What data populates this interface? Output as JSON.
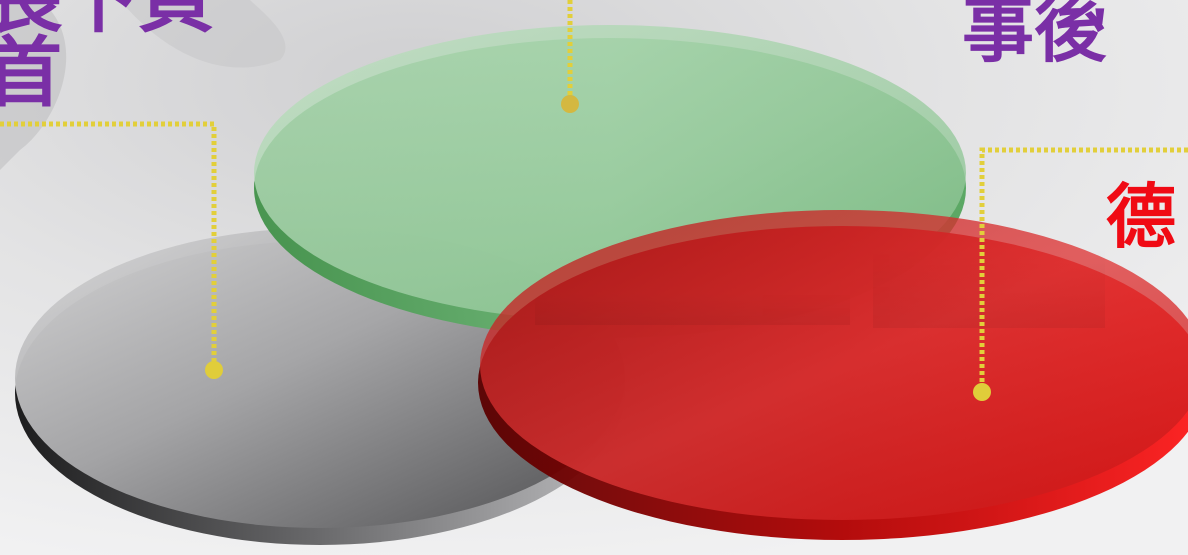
{
  "labels": {
    "left_line1": "長下頁",
    "left_line2": "首",
    "top_right": "事後ᡃ",
    "right": "德"
  },
  "colors": {
    "left_label": "#7a2fa6",
    "top_right_label": "#7a2fa6",
    "right_label": "#f00a14",
    "connector": "#e2cf3a",
    "disc_gray": "#8a8a8c",
    "disc_green": "#7fc08a",
    "disc_red": "#d02020"
  },
  "discs": [
    {
      "name": "gray-disc",
      "color": "gray"
    },
    {
      "name": "green-disc",
      "color": "green"
    },
    {
      "name": "red-disc",
      "color": "red"
    }
  ]
}
